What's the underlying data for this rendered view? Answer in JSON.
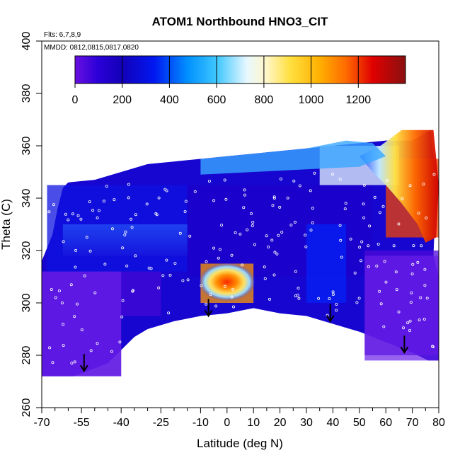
{
  "chart_data": {
    "type": "heatmap",
    "title": "ATOM1 Northbound HNO3_CIT",
    "xlabel": "Latitude (deg N)",
    "ylabel": "Theta (C)",
    "annotations": {
      "flights": "Flts: 6,7,8,9",
      "dates": "MMDD: 0812,0815,0817,0820"
    },
    "xlim": [
      -70,
      80
    ],
    "ylim": [
      260,
      400
    ],
    "x_major_ticks": [
      -70,
      -55,
      -40,
      -25,
      -10,
      0,
      10,
      20,
      30,
      40,
      50,
      60,
      70,
      80
    ],
    "x_minor_ticks": [
      -65,
      -60,
      -50,
      -45,
      -35,
      -30,
      -20,
      -15,
      -5,
      5,
      15,
      25,
      35,
      45,
      55,
      65,
      75
    ],
    "y_ticks": [
      260,
      280,
      300,
      320,
      340,
      360,
      380,
      400
    ],
    "colorbar": {
      "ticks": [
        0,
        200,
        400,
        600,
        800,
        1000,
        1200
      ],
      "range": [
        0,
        1400
      ],
      "colors": [
        "#6a0fe0",
        "#1a00c8",
        "#0028ff",
        "#1ab8ff",
        "#e8f8ff",
        "#ffe040",
        "#ff9a00",
        "#e80000",
        "#8a1010"
      ]
    },
    "grid": false,
    "legend": "colorbar inside plot, top-left",
    "field_regions": [
      {
        "lat_range": [
          -70,
          -40
        ],
        "theta_range": [
          272,
          312
        ],
        "value": 60
      },
      {
        "lat_range": [
          -68,
          -15
        ],
        "theta_range": [
          312,
          345
        ],
        "value": 250
      },
      {
        "lat_range": [
          -15,
          55
        ],
        "theta_range": [
          310,
          345
        ],
        "value": 170
      },
      {
        "lat_range": [
          -40,
          -25
        ],
        "theta_range": [
          295,
          312
        ],
        "value": 80
      },
      {
        "lat_range": [
          -10,
          10
        ],
        "theta_range": [
          300,
          315
        ],
        "value": 1050
      },
      {
        "lat_range": [
          30,
          45
        ],
        "theta_range": [
          300,
          330
        ],
        "value": 320
      },
      {
        "lat_range": [
          52,
          80
        ],
        "theta_range": [
          280,
          320
        ],
        "value": 60
      },
      {
        "lat_range": [
          60,
          80
        ],
        "theta_range": [
          325,
          355
        ],
        "value": 1150
      },
      {
        "lat_range": [
          35,
          65
        ],
        "theta_range": [
          345,
          360
        ],
        "value": 700
      }
    ],
    "arrows_lat": [
      -54,
      -7,
      39,
      67
    ],
    "arrows_theta_tip": [
      274,
      295,
      293,
      281
    ]
  }
}
